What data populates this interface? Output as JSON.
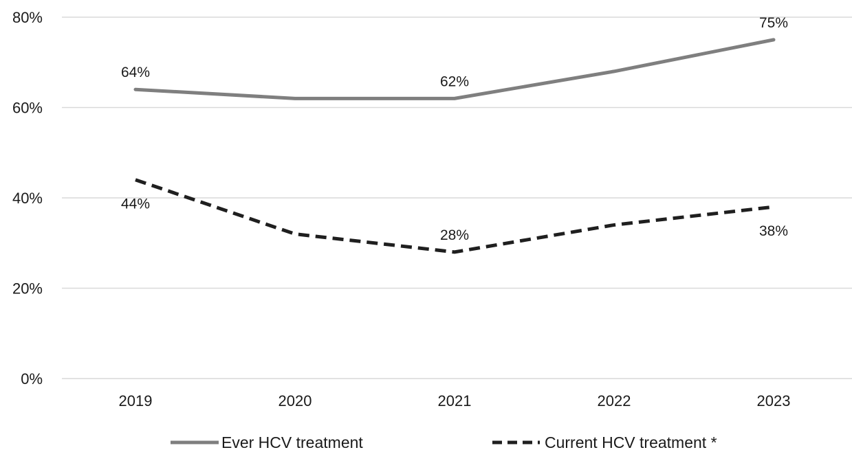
{
  "chart_data": {
    "type": "line",
    "categories": [
      "2019",
      "2020",
      "2021",
      "2022",
      "2023"
    ],
    "ylim": [
      0,
      80
    ],
    "yticks": [
      0,
      20,
      40,
      60,
      80
    ],
    "ytick_labels": [
      "0%",
      "20%",
      "40%",
      "60%",
      "80%"
    ],
    "grid": true,
    "legend_position": "bottom",
    "series": [
      {
        "name": "Ever HCV treatment",
        "values": [
          64,
          62,
          62,
          68,
          75
        ],
        "style": "solid",
        "color": "#7f7f7f",
        "labels": [
          "64%",
          "",
          "62%",
          "",
          "75%"
        ],
        "label_placement": "above"
      },
      {
        "name": "Current HCV treatment *",
        "values": [
          44,
          32,
          28,
          34,
          38
        ],
        "style": "dashed",
        "color": "#1f1f1f",
        "labels": [
          "44%",
          "",
          "28%",
          "",
          "38%"
        ],
        "label_placement": [
          "below",
          "",
          "above",
          "",
          "below"
        ]
      }
    ]
  }
}
